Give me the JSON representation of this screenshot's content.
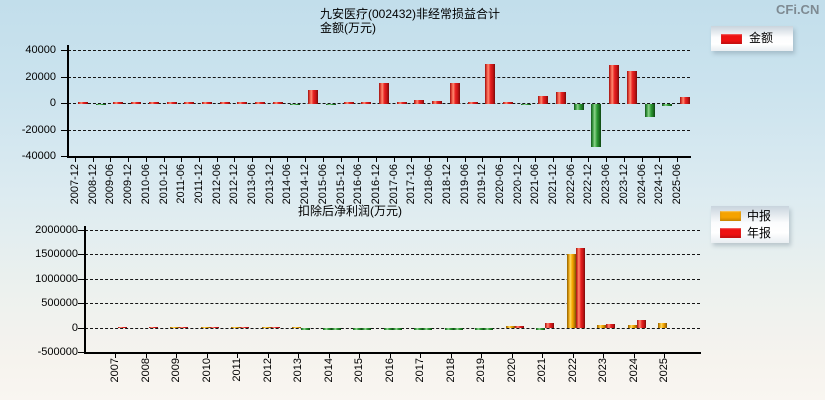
{
  "page": {
    "watermark": "CFi.CN"
  },
  "chart_data": [
    {
      "type": "bar",
      "title": "九安医疗(002432)非经常损益合计",
      "subtitle": "金额(万元)",
      "legend": [
        {
          "label": "金额",
          "color": "#ee1111"
        }
      ],
      "legend_position": "right-top",
      "grid": true,
      "ylim": [
        -40000,
        40000
      ],
      "yticks": [
        40000,
        20000,
        0,
        -20000,
        -40000
      ],
      "positive_color": "#e82020",
      "negative_color": "#2e9c35",
      "categories": [
        "2007-12",
        "2008-12",
        "2009-06",
        "2009-12",
        "2010-06",
        "2010-12",
        "2011-06",
        "2011-12",
        "2012-06",
        "2012-12",
        "2013-06",
        "2013-12",
        "2014-06",
        "2014-12",
        "2015-06",
        "2015-12",
        "2016-06",
        "2016-12",
        "2017-06",
        "2017-12",
        "2018-06",
        "2018-12",
        "2019-06",
        "2019-12",
        "2020-06",
        "2020-12",
        "2021-06",
        "2021-12",
        "2022-06",
        "2022-12",
        "2023-06",
        "2023-12",
        "2024-06",
        "2024-12",
        "2025-06"
      ],
      "values": [
        1200,
        -700,
        1000,
        1300,
        900,
        1400,
        900,
        1200,
        900,
        1200,
        800,
        1100,
        -600,
        10000,
        -500,
        1000,
        1000,
        16000,
        900,
        3000,
        2200,
        15500,
        1100,
        30000,
        1200,
        -600,
        6000,
        9000,
        -4500,
        -33000,
        29500,
        24500,
        -10000,
        -1500,
        5000
      ]
    },
    {
      "type": "bar",
      "title": "扣除后净利润(万元)",
      "legend": [
        {
          "label": "中报",
          "color": "#f5a300"
        },
        {
          "label": "年报",
          "color": "#ee1111"
        }
      ],
      "legend_position": "right-top",
      "grid": true,
      "ylim": [
        -500000,
        2000000
      ],
      "yticks": [
        2000000,
        1500000,
        1000000,
        500000,
        0,
        -500000
      ],
      "negative_color": "#2e9c35",
      "categories": [
        "2007",
        "2008",
        "2009",
        "2010",
        "2011",
        "2012",
        "2013",
        "2014",
        "2015",
        "2016",
        "2017",
        "2018",
        "2019",
        "2020",
        "2021",
        "2022",
        "2023",
        "2024",
        "2025"
      ],
      "series": [
        {
          "name": "中报",
          "color": "#f5a300",
          "values": [
            null,
            null,
            15000,
            15000,
            14000,
            12000,
            15000,
            -5000,
            -5000,
            -4000,
            -3000,
            -3000,
            -2000,
            35000,
            -3000,
            1520000,
            55000,
            70000,
            110000
          ]
        },
        {
          "name": "年报",
          "color": "#ee1111",
          "values": [
            25000,
            25000,
            25000,
            28000,
            25000,
            22000,
            -8000,
            -10000,
            -12000,
            -10000,
            -8000,
            -8000,
            -6000,
            40000,
            95000,
            1630000,
            90000,
            170000,
            null
          ]
        }
      ]
    }
  ]
}
